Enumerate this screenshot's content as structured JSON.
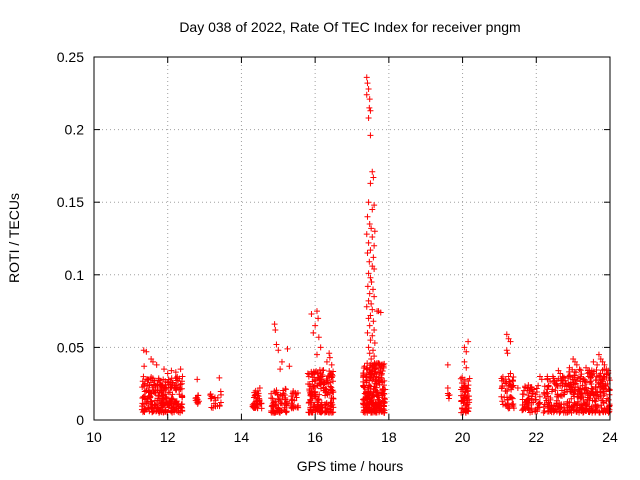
{
  "chart_data": {
    "type": "scatter",
    "title": "Day 038 of 2022, Rate Of TEC Index for receiver pngm",
    "xlabel": "GPS time / hours",
    "ylabel": "ROTI / TECUs",
    "xlim": [
      10,
      24
    ],
    "ylim": [
      0,
      0.25
    ],
    "xticks": [
      10,
      12,
      14,
      16,
      18,
      20,
      22,
      24
    ],
    "xtick_labels": [
      "10",
      "12",
      "14",
      "16",
      "18",
      "20",
      "22",
      "24"
    ],
    "yticks": [
      0,
      0.05,
      0.1,
      0.15,
      0.2,
      0.25
    ],
    "ytick_labels": [
      "0",
      "0.05",
      "0.1",
      "0.15",
      "0.2",
      "0.25"
    ],
    "grid": true,
    "marker": "+",
    "color": "#ff0000",
    "series": [
      {
        "name": "ROTI",
        "clusters": [
          {
            "x_range": [
              11.3,
              12.4
            ],
            "y_range": [
              0.005,
              0.03
            ],
            "count": 260
          },
          {
            "x_range": [
              12.75,
              12.85
            ],
            "y_range": [
              0.01,
              0.02
            ],
            "count": 12
          },
          {
            "x_range": [
              13.15,
              13.45
            ],
            "y_range": [
              0.008,
              0.02
            ],
            "count": 18
          },
          {
            "x_range": [
              14.3,
              14.55
            ],
            "y_range": [
              0.008,
              0.025
            ],
            "count": 40
          },
          {
            "x_range": [
              14.8,
              15.25
            ],
            "y_range": [
              0.005,
              0.022
            ],
            "count": 70
          },
          {
            "x_range": [
              15.35,
              15.55
            ],
            "y_range": [
              0.008,
              0.02
            ],
            "count": 25
          },
          {
            "x_range": [
              15.8,
              16.5
            ],
            "y_range": [
              0.005,
              0.035
            ],
            "count": 190
          },
          {
            "x_range": [
              17.3,
              17.9
            ],
            "y_range": [
              0.005,
              0.04
            ],
            "count": 260
          },
          {
            "x_range": [
              19.6,
              19.65
            ],
            "y_range": [
              0.01,
              0.02
            ],
            "count": 4
          },
          {
            "x_range": [
              19.95,
              20.2
            ],
            "y_range": [
              0.005,
              0.03
            ],
            "count": 60
          },
          {
            "x_range": [
              21.05,
              21.4
            ],
            "y_range": [
              0.008,
              0.03
            ],
            "count": 50
          },
          {
            "x_range": [
              21.6,
              22.1
            ],
            "y_range": [
              0.005,
              0.025
            ],
            "count": 70
          },
          {
            "x_range": [
              22.2,
              22.85
            ],
            "y_range": [
              0.005,
              0.03
            ],
            "count": 110
          },
          {
            "x_range": [
              22.85,
              24.0
            ],
            "y_range": [
              0.005,
              0.035
            ],
            "count": 280
          }
        ],
        "points": [
          [
            11.35,
            0.048
          ],
          [
            11.42,
            0.047
          ],
          [
            11.55,
            0.042
          ],
          [
            11.6,
            0.04
          ],
          [
            11.7,
            0.038
          ],
          [
            11.36,
            0.037
          ],
          [
            11.9,
            0.035
          ],
          [
            12.1,
            0.034
          ],
          [
            12.22,
            0.033
          ],
          [
            12.35,
            0.035
          ],
          [
            12.4,
            0.03
          ],
          [
            12.0,
            0.032
          ],
          [
            12.8,
            0.028
          ],
          [
            13.4,
            0.029
          ],
          [
            14.5,
            0.022
          ],
          [
            14.9,
            0.066
          ],
          [
            14.92,
            0.062
          ],
          [
            14.95,
            0.052
          ],
          [
            15.0,
            0.048
          ],
          [
            15.25,
            0.049
          ],
          [
            15.1,
            0.04
          ],
          [
            15.3,
            0.037
          ],
          [
            15.05,
            0.035
          ],
          [
            15.9,
            0.073
          ],
          [
            16.05,
            0.075
          ],
          [
            16.08,
            0.07
          ],
          [
            16.0,
            0.065
          ],
          [
            15.95,
            0.06
          ],
          [
            16.1,
            0.057
          ],
          [
            16.15,
            0.05
          ],
          [
            16.05,
            0.045
          ],
          [
            16.38,
            0.046
          ],
          [
            16.4,
            0.043
          ],
          [
            16.32,
            0.04
          ],
          [
            16.45,
            0.038
          ],
          [
            17.4,
            0.236
          ],
          [
            17.42,
            0.232
          ],
          [
            17.45,
            0.228
          ],
          [
            17.4,
            0.224
          ],
          [
            17.48,
            0.221
          ],
          [
            17.47,
            0.215
          ],
          [
            17.5,
            0.213
          ],
          [
            17.45,
            0.208
          ],
          [
            17.5,
            0.196
          ],
          [
            17.55,
            0.171
          ],
          [
            17.58,
            0.167
          ],
          [
            17.5,
            0.163
          ],
          [
            17.45,
            0.15
          ],
          [
            17.6,
            0.148
          ],
          [
            17.55,
            0.145
          ],
          [
            17.42,
            0.14
          ],
          [
            17.48,
            0.135
          ],
          [
            17.52,
            0.132
          ],
          [
            17.62,
            0.13
          ],
          [
            17.4,
            0.128
          ],
          [
            17.55,
            0.126
          ],
          [
            17.45,
            0.122
          ],
          [
            17.6,
            0.12
          ],
          [
            17.5,
            0.117
          ],
          [
            17.42,
            0.115
          ],
          [
            17.58,
            0.112
          ],
          [
            17.47,
            0.109
          ],
          [
            17.55,
            0.106
          ],
          [
            17.6,
            0.104
          ],
          [
            17.45,
            0.101
          ],
          [
            17.5,
            0.098
          ],
          [
            17.53,
            0.095
          ],
          [
            17.43,
            0.092
          ],
          [
            17.57,
            0.09
          ],
          [
            17.48,
            0.087
          ],
          [
            17.6,
            0.085
          ],
          [
            17.45,
            0.082
          ],
          [
            17.52,
            0.08
          ],
          [
            17.4,
            0.078
          ],
          [
            17.55,
            0.076
          ],
          [
            17.68,
            0.075
          ],
          [
            17.72,
            0.075
          ],
          [
            17.78,
            0.074
          ],
          [
            17.5,
            0.072
          ],
          [
            17.45,
            0.07
          ],
          [
            17.58,
            0.068
          ],
          [
            17.48,
            0.065
          ],
          [
            17.6,
            0.062
          ],
          [
            17.42,
            0.06
          ],
          [
            17.55,
            0.058
          ],
          [
            17.5,
            0.055
          ],
          [
            17.62,
            0.053
          ],
          [
            17.45,
            0.05
          ],
          [
            17.57,
            0.048
          ],
          [
            17.48,
            0.046
          ],
          [
            17.6,
            0.044
          ],
          [
            17.52,
            0.042
          ],
          [
            19.6,
            0.038
          ],
          [
            19.6,
            0.022
          ],
          [
            20.05,
            0.05
          ],
          [
            20.15,
            0.054
          ],
          [
            20.1,
            0.047
          ],
          [
            20.05,
            0.04
          ],
          [
            20.1,
            0.036
          ],
          [
            21.2,
            0.059
          ],
          [
            21.25,
            0.056
          ],
          [
            21.3,
            0.054
          ],
          [
            21.2,
            0.048
          ],
          [
            21.22,
            0.046
          ],
          [
            21.3,
            0.032
          ],
          [
            21.25,
            0.03
          ],
          [
            21.5,
            0.022
          ],
          [
            22.1,
            0.03
          ],
          [
            22.15,
            0.028
          ],
          [
            22.3,
            0.03
          ],
          [
            22.45,
            0.03
          ],
          [
            22.5,
            0.025
          ],
          [
            22.6,
            0.034
          ],
          [
            22.65,
            0.032
          ],
          [
            22.9,
            0.036
          ],
          [
            23.0,
            0.042
          ],
          [
            23.05,
            0.04
          ],
          [
            23.1,
            0.038
          ],
          [
            23.35,
            0.036
          ],
          [
            23.4,
            0.034
          ],
          [
            23.55,
            0.04
          ],
          [
            23.7,
            0.045
          ],
          [
            23.75,
            0.042
          ],
          [
            23.8,
            0.04
          ],
          [
            23.85,
            0.038
          ],
          [
            23.9,
            0.035
          ],
          [
            23.95,
            0.034
          ],
          [
            23.65,
            0.038
          ]
        ]
      }
    ]
  }
}
